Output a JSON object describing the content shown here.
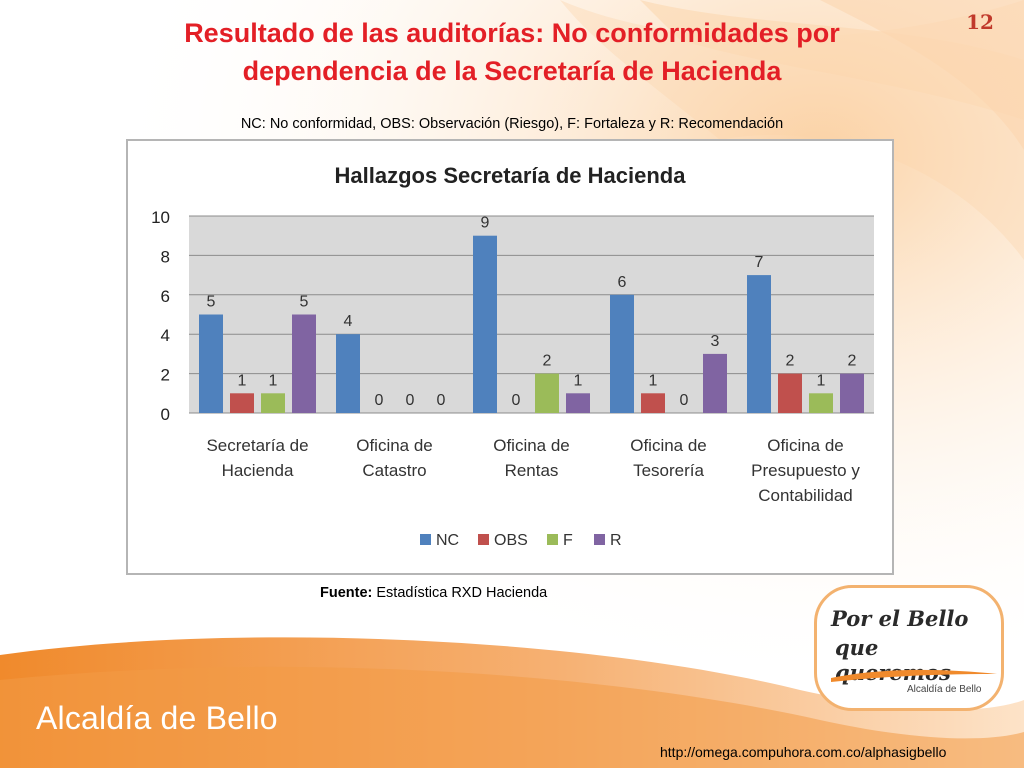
{
  "slide": {
    "title_line1": "Resultado de las auditorías: No conformidades por",
    "title_line2": "dependencia de la Secretaría de Hacienda",
    "page_number": "12",
    "subtitle": "NC: No conformidad, OBS: Observación (Riesgo), F: Fortaleza y R: Recomendación",
    "source_label": "Fuente:",
    "source_text": "Estadística RXD Hacienda",
    "brand": "Alcaldía de Bello",
    "url": "http://omega.compuhora.com.co/alphasigbello",
    "logo_line1": "Por el Bello",
    "logo_line2": "que queremos",
    "logo_sub": "Alcaldía de Bello",
    "colors": {
      "title": "#e31f26",
      "orange": "#f28b30",
      "light_orange": "#fbd6ae"
    }
  },
  "chart_data": {
    "type": "bar",
    "title": "Hallazgos Secretaría de Hacienda",
    "categories": [
      [
        "Secretaría de",
        "Hacienda"
      ],
      [
        "Oficina de",
        "Catastro"
      ],
      [
        "Oficina de",
        "Rentas"
      ],
      [
        "Oficina de",
        "Tesorería"
      ],
      [
        "Oficina de",
        "Presupuesto y",
        "Contabilidad"
      ]
    ],
    "series": [
      {
        "name": "NC",
        "color": "#4f81bd",
        "values": [
          5,
          4,
          9,
          6,
          7
        ]
      },
      {
        "name": "OBS",
        "color": "#c0504d",
        "values": [
          1,
          0,
          0,
          1,
          2
        ]
      },
      {
        "name": "F",
        "color": "#9bbb59",
        "values": [
          1,
          0,
          2,
          0,
          1
        ]
      },
      {
        "name": "R",
        "color": "#8064a2",
        "values": [
          5,
          0,
          1,
          3,
          2
        ]
      }
    ],
    "ylim": [
      0,
      10
    ],
    "yticks": [
      0,
      2,
      4,
      6,
      8,
      10
    ],
    "grid": true,
    "legend": "bottom",
    "plot_background": "#d9d9d9"
  }
}
